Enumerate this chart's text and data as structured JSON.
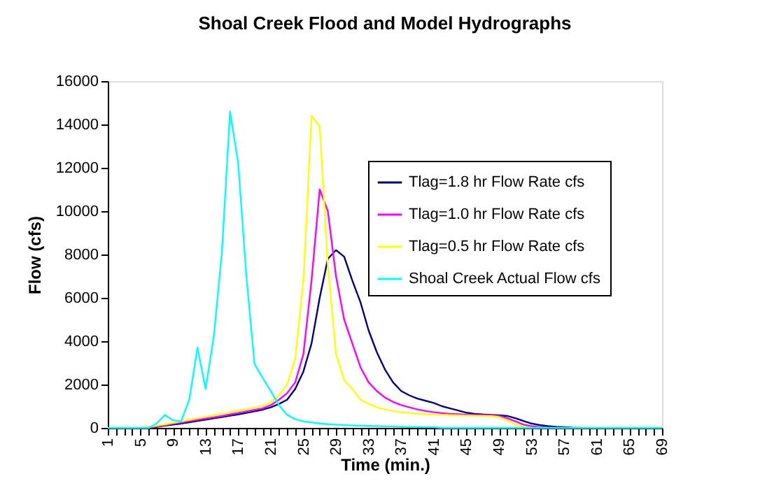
{
  "chart_data": {
    "type": "line",
    "title": "Shoal Creek Flood and Model Hydrographs",
    "xlabel": "Time (min.)",
    "ylabel": "Flow (cfs)",
    "categories": [
      "1",
      null,
      null,
      null,
      "5",
      null,
      null,
      null,
      "9",
      null,
      null,
      null,
      "13",
      null,
      null,
      null,
      "17",
      null,
      null,
      null,
      "21",
      null,
      null,
      null,
      "25",
      null,
      null,
      null,
      "29",
      null,
      null,
      null,
      "33",
      null,
      null,
      null,
      "37",
      null,
      null,
      null,
      "41",
      null,
      null,
      null,
      "45",
      null,
      null,
      null,
      "49",
      null,
      null,
      null,
      "53",
      null,
      null,
      null,
      "57",
      null,
      null,
      null,
      "61",
      null,
      null,
      null,
      "65",
      null,
      null,
      null,
      "69"
    ],
    "ylim": [
      0,
      16000
    ],
    "yticks": [
      0,
      2000,
      4000,
      6000,
      8000,
      10000,
      12000,
      14000,
      16000
    ],
    "grid": false,
    "legend": "right",
    "marker": "none",
    "line_style": "solid",
    "series": [
      {
        "name": "Tlag=1.8 hr Flow Rate cfs",
        "color": "#000080",
        "values": [
          null,
          null,
          null,
          null,
          null,
          0,
          50,
          100,
          150,
          200,
          260,
          320,
          380,
          440,
          500,
          560,
          620,
          690,
          760,
          840,
          950,
          1100,
          1300,
          1800,
          2600,
          3900,
          6000,
          7800,
          8200,
          7900,
          6800,
          5800,
          4500,
          3500,
          2700,
          2100,
          1700,
          1500,
          1350,
          1250,
          1150,
          1000,
          900,
          800,
          700,
          650,
          620,
          600,
          580,
          550,
          450,
          320,
          200,
          130,
          80,
          50,
          30,
          10,
          0,
          null,
          null,
          null,
          null,
          null,
          null,
          null,
          null,
          null,
          null
        ]
      },
      {
        "name": "Tlag=1.0 hr Flow Rate cfs",
        "color": "#ff00ff",
        "values": [
          null,
          null,
          null,
          null,
          null,
          0,
          70,
          130,
          190,
          250,
          310,
          370,
          430,
          490,
          550,
          620,
          690,
          760,
          830,
          900,
          1050,
          1300,
          1600,
          2100,
          3400,
          6800,
          11000,
          10000,
          7000,
          5000,
          3900,
          2800,
          2100,
          1700,
          1400,
          1200,
          1050,
          950,
          850,
          780,
          720,
          680,
          650,
          630,
          610,
          600,
          590,
          580,
          550,
          450,
          300,
          150,
          80,
          30,
          0,
          null,
          null,
          null,
          null,
          null,
          null,
          null,
          null,
          null,
          null,
          null,
          null,
          null,
          null
        ]
      },
      {
        "name": "Tlag=0.5 hr Flow Rate cfs",
        "color": "#ffff00",
        "values": [
          null,
          null,
          null,
          null,
          0,
          50,
          100,
          160,
          230,
          300,
          370,
          440,
          510,
          580,
          650,
          720,
          790,
          860,
          930,
          1000,
          1200,
          1500,
          2000,
          3200,
          6800,
          14400,
          13900,
          7500,
          3400,
          2200,
          1800,
          1300,
          1100,
          950,
          850,
          780,
          720,
          680,
          650,
          630,
          610,
          600,
          590,
          580,
          570,
          560,
          550,
          540,
          500,
          350,
          150,
          50,
          0,
          null,
          null,
          null,
          null,
          null,
          null,
          null,
          null,
          null,
          null,
          null,
          null,
          null,
          null,
          null,
          null
        ]
      },
      {
        "name": "Shoal Creek Actual Flow cfs",
        "color": "#00ffff",
        "values": [
          0,
          0,
          0,
          0,
          0,
          0,
          200,
          600,
          350,
          300,
          1300,
          3700,
          1800,
          4200,
          8100,
          14600,
          12200,
          7000,
          2950,
          2300,
          1700,
          1050,
          600,
          400,
          300,
          250,
          200,
          170,
          150,
          130,
          110,
          100,
          90,
          80,
          70,
          60,
          50,
          40,
          40,
          30,
          30,
          0,
          0,
          0,
          0,
          0,
          0,
          0,
          0,
          0,
          0,
          0,
          0,
          0,
          0,
          0,
          0,
          0,
          0,
          0,
          0,
          0,
          0,
          0,
          0,
          0,
          0,
          0,
          0
        ]
      }
    ]
  }
}
